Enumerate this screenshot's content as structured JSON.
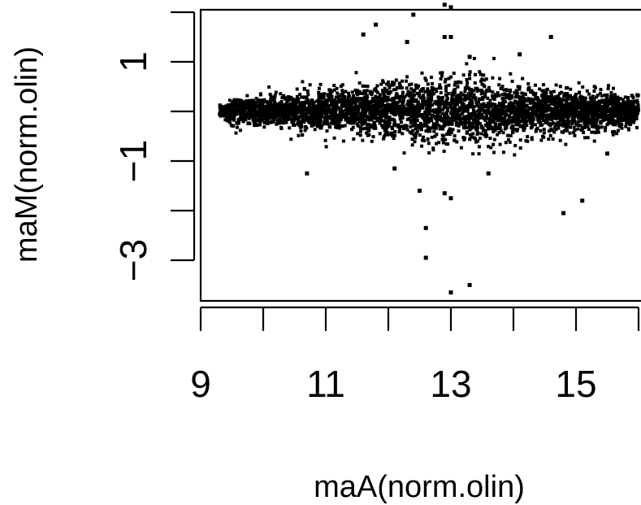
{
  "chart_data": {
    "type": "scatter",
    "title": "",
    "xlabel": "maA(norm.olin)",
    "ylabel": "maM(norm.olin)",
    "xlim": [
      9.0,
      16.0
    ],
    "ylim": [
      -4.0,
      2.0
    ],
    "x_ticks": [
      9,
      10,
      11,
      12,
      13,
      14,
      15,
      16
    ],
    "x_tick_labels": [
      "9",
      "11",
      "13",
      "15"
    ],
    "x_tick_label_values": [
      9,
      11,
      13,
      15
    ],
    "y_ticks": [
      -3,
      -2,
      -1,
      0,
      1,
      2
    ],
    "y_tick_labels": [
      "-3",
      "-1",
      "1"
    ],
    "y_tick_label_values": [
      -3,
      -1,
      1
    ],
    "grid": false,
    "point_color": "#000000",
    "cloud": {
      "n_points": 4000,
      "x_range": [
        9.3,
        16.0
      ],
      "y_center": 0.0,
      "description_band": [
        -0.6,
        0.9
      ]
    },
    "outliers": [
      {
        "x": 11.6,
        "y": 1.55
      },
      {
        "x": 11.8,
        "y": 1.75
      },
      {
        "x": 12.3,
        "y": 1.4
      },
      {
        "x": 12.4,
        "y": 1.95
      },
      {
        "x": 12.9,
        "y": 2.15
      },
      {
        "x": 13.0,
        "y": 2.1
      },
      {
        "x": 12.9,
        "y": 1.5
      },
      {
        "x": 13.0,
        "y": 1.5
      },
      {
        "x": 13.3,
        "y": 1.1
      },
      {
        "x": 14.1,
        "y": 1.15
      },
      {
        "x": 14.6,
        "y": 1.5
      },
      {
        "x": 12.5,
        "y": -1.6
      },
      {
        "x": 12.9,
        "y": -1.65
      },
      {
        "x": 13.0,
        "y": -1.75
      },
      {
        "x": 12.6,
        "y": -2.35
      },
      {
        "x": 12.6,
        "y": -2.95
      },
      {
        "x": 14.8,
        "y": -2.05
      },
      {
        "x": 15.1,
        "y": -1.8
      },
      {
        "x": 13.3,
        "y": -3.5
      },
      {
        "x": 13.0,
        "y": -3.65
      },
      {
        "x": 10.7,
        "y": -1.25
      },
      {
        "x": 15.5,
        "y": -0.85
      },
      {
        "x": 12.1,
        "y": -1.15
      },
      {
        "x": 13.6,
        "y": -1.25
      }
    ]
  }
}
